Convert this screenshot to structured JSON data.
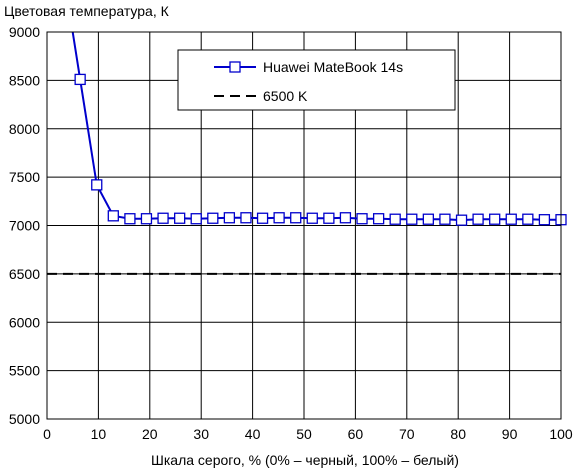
{
  "chart_data": {
    "type": "line",
    "title": "",
    "ylabel": "Цветовая температура, К",
    "xlabel": "Шкала серого, % (0% – черный, 100% – белый)",
    "xlim": [
      0,
      100
    ],
    "ylim": [
      5000,
      9000
    ],
    "xticks": [
      "0",
      "10",
      "20",
      "30",
      "40",
      "50",
      "60",
      "70",
      "80",
      "90",
      "100"
    ],
    "yticks": [
      "5000",
      "5500",
      "6000",
      "6500",
      "7000",
      "7500",
      "8000",
      "8500",
      "9000"
    ],
    "grid": true,
    "legend_position": "top-right",
    "series": [
      {
        "name": "Huawei MateBook 14s",
        "color": "#0000cc",
        "marker": "square-open",
        "x": [
          6.45,
          9.68,
          12.9,
          16.13,
          19.35,
          22.58,
          25.81,
          29.03,
          32.26,
          35.48,
          38.71,
          41.94,
          45.16,
          48.39,
          51.61,
          54.84,
          58.06,
          61.29,
          64.52,
          67.74,
          70.97,
          74.19,
          77.42,
          80.65,
          83.87,
          87.1,
          90.32,
          93.55,
          96.77,
          100
        ],
        "y": [
          8510,
          7420,
          7100,
          7070,
          7070,
          7075,
          7075,
          7070,
          7075,
          7080,
          7080,
          7075,
          7080,
          7080,
          7075,
          7075,
          7080,
          7070,
          7070,
          7065,
          7065,
          7065,
          7065,
          7055,
          7065,
          7065,
          7065,
          7065,
          7060,
          7060
        ],
        "line_starts_above_axis": true
      },
      {
        "name": "6500 K",
        "color": "#000000",
        "style": "dashed",
        "x": [
          0,
          100
        ],
        "y": [
          6500,
          6500
        ]
      }
    ]
  }
}
